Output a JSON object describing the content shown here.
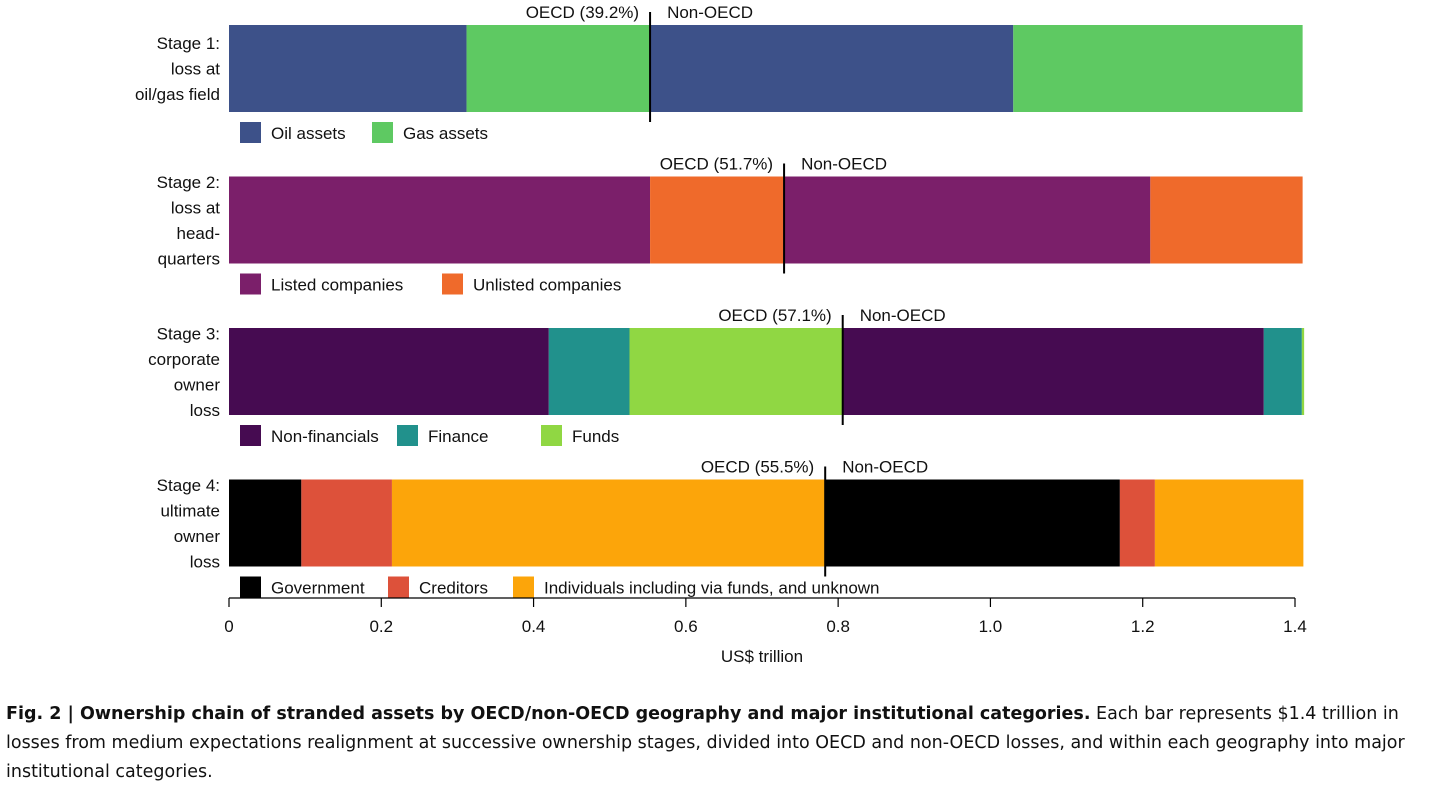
{
  "chart_data": {
    "type": "bar",
    "orientation": "horizontal-stacked",
    "xlabel": "US$ trillion",
    "xlim": [
      0,
      1.4
    ],
    "x_ticks": [
      "0",
      "0.2",
      "0.4",
      "0.6",
      "0.8",
      "1.0",
      "1.2",
      "1.4"
    ],
    "x_tick_values": [
      0,
      0.2,
      0.4,
      0.6,
      0.8,
      1.0,
      1.2,
      1.4
    ],
    "grid": false,
    "legend_placement": "below each bar",
    "stages": [
      {
        "label_lines": [
          "Stage 1:",
          "loss at",
          "oil/gas field"
        ],
        "oecd_label": "OECD (39.2%)",
        "non_oecd_label": "Non-OECD",
        "divider_value": 0.553,
        "legend": [
          {
            "name": "Oil assets",
            "color": "#3d5189"
          },
          {
            "name": "Gas assets",
            "color": "#5ec962"
          }
        ],
        "segments": [
          {
            "category": "Oil assets",
            "region": "OECD",
            "value": 0.312,
            "color": "#3d5189"
          },
          {
            "category": "Gas assets",
            "region": "OECD",
            "value": 0.241,
            "color": "#5ec962"
          },
          {
            "category": "Oil assets",
            "region": "Non-OECD",
            "value": 0.477,
            "color": "#3d5189"
          },
          {
            "category": "Gas assets",
            "region": "Non-OECD",
            "value": 0.38,
            "color": "#5ec962"
          }
        ]
      },
      {
        "label_lines": [
          "Stage 2:",
          "loss at",
          "head-",
          "quarters"
        ],
        "oecd_label": "OECD (51.7%)",
        "non_oecd_label": "Non-OECD",
        "divider_value": 0.729,
        "legend": [
          {
            "name": "Listed companies",
            "color": "#7b1f6a"
          },
          {
            "name": "Unlisted companies",
            "color": "#ef6a2b"
          }
        ],
        "segments": [
          {
            "category": "Listed companies",
            "region": "OECD",
            "value": 0.553,
            "color": "#7b1f6a"
          },
          {
            "category": "Unlisted companies",
            "region": "OECD",
            "value": 0.176,
            "color": "#ef6a2b"
          },
          {
            "category": "Listed companies",
            "region": "Non-OECD",
            "value": 0.481,
            "color": "#7b1f6a"
          },
          {
            "category": "Unlisted companies",
            "region": "Non-OECD",
            "value": 0.2,
            "color": "#ef6a2b"
          }
        ]
      },
      {
        "label_lines": [
          "Stage 3:",
          "corporate",
          "owner",
          "loss"
        ],
        "oecd_label": "OECD (57.1%)",
        "non_oecd_label": "Non-OECD",
        "divider_value": 0.806,
        "legend": [
          {
            "name": "Non-financials",
            "color": "#460b51"
          },
          {
            "name": "Finance",
            "color": "#21918c"
          },
          {
            "name": "Funds",
            "color": "#90d743"
          }
        ],
        "segments": [
          {
            "category": "Non-financials",
            "region": "OECD",
            "value": 0.42,
            "color": "#460b51"
          },
          {
            "category": "Finance",
            "region": "OECD",
            "value": 0.106,
            "color": "#21918c"
          },
          {
            "category": "Funds",
            "region": "OECD",
            "value": 0.28,
            "color": "#90d743"
          },
          {
            "category": "Non-financials",
            "region": "Non-OECD",
            "value": 0.553,
            "color": "#460b51"
          },
          {
            "category": "Finance",
            "region": "Non-OECD",
            "value": 0.05,
            "color": "#21918c"
          },
          {
            "category": "Funds",
            "region": "Non-OECD",
            "value": 0.003,
            "color": "#90d743"
          }
        ]
      },
      {
        "label_lines": [
          "Stage 4:",
          "ultimate",
          "owner",
          "loss"
        ],
        "oecd_label": "OECD (55.5%)",
        "non_oecd_label": "Non-OECD",
        "divider_value": 0.783,
        "legend": [
          {
            "name": "Government",
            "color": "#000000"
          },
          {
            "name": "Creditors",
            "color": "#dd513a"
          },
          {
            "name": "Individuals including via funds, and unknown",
            "color": "#fca50a"
          }
        ],
        "segments": [
          {
            "category": "Government",
            "region": "OECD",
            "value": 0.095,
            "color": "#000000"
          },
          {
            "category": "Creditors",
            "region": "OECD",
            "value": 0.119,
            "color": "#dd513a"
          },
          {
            "category": "Individuals including via funds, and unknown",
            "region": "OECD",
            "value": 0.569,
            "color": "#fca50a"
          },
          {
            "category": "Government",
            "region": "Non-OECD",
            "value": 0.387,
            "color": "#000000"
          },
          {
            "category": "Creditors",
            "region": "Non-OECD",
            "value": 0.046,
            "color": "#dd513a"
          },
          {
            "category": "Individuals including via funds, and unknown",
            "region": "Non-OECD",
            "value": 0.195,
            "color": "#fca50a"
          }
        ]
      }
    ]
  },
  "caption": {
    "bold": "Fig. 2 | Ownership chain of stranded assets by OECD/non-OECD geography and major institutional categories.",
    "text": " Each bar represents $1.4 trillion in losses from medium expectations realignment at successive ownership stages, divided into OECD and non-OECD losses, and within each geography into major institutional categories."
  }
}
